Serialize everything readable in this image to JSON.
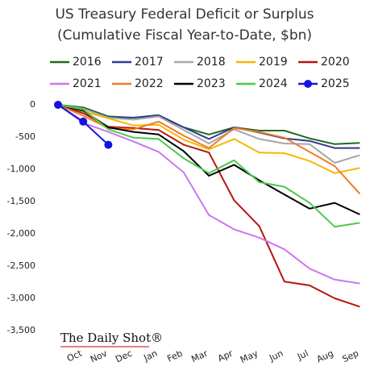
{
  "chart_data": {
    "type": "line",
    "title": "US Treasury Federal Deficit or Surplus",
    "subtitle": "(Cumulative Fiscal Year-to-Date, $bn)",
    "annotation": "The Daily Shot®",
    "categories": [
      null,
      "Oct",
      "Nov",
      "Dec",
      "Jan",
      "Feb",
      "Mar",
      "Apr",
      "May",
      "Jun",
      "Jul",
      "Aug",
      "Sep"
    ],
    "ylim": [
      -3500,
      0
    ],
    "yticks": [
      0,
      -500,
      {
        "value": -1000,
        "label": "-1,000"
      },
      {
        "value": -1500,
        "label": "-1,500"
      },
      {
        "value": -2000,
        "label": "-2,000"
      },
      {
        "value": -2500,
        "label": "-2,500"
      },
      {
        "value": -3000,
        "label": "-3,000"
      },
      {
        "value": -3500,
        "label": "-3,500"
      }
    ],
    "grid": false,
    "series": [
      {
        "name": "2016",
        "color": "#1e6b1e",
        "values": [
          0,
          -40,
          -180,
          -200,
          -170,
          -350,
          -460,
          -350,
          -400,
          -400,
          -520,
          -610,
          -590
        ]
      },
      {
        "name": "2017",
        "color": "#2e3a8c",
        "values": [
          0,
          -60,
          -190,
          -200,
          -160,
          -350,
          -530,
          -350,
          -430,
          -520,
          -560,
          -670,
          -670
        ]
      },
      {
        "name": "2018",
        "color": "#a6a6a6",
        "values": [
          0,
          -60,
          -200,
          -230,
          -180,
          -390,
          -600,
          -380,
          -530,
          -600,
          -610,
          -900,
          -780
        ]
      },
      {
        "name": "2019",
        "color": "#f5b800",
        "values": [
          0,
          -100,
          -210,
          -320,
          -310,
          -540,
          -690,
          -530,
          -740,
          -750,
          -870,
          -1060,
          -980
        ]
      },
      {
        "name": "2020",
        "color": "#b5170f",
        "values": [
          0,
          -130,
          -340,
          -360,
          -390,
          -620,
          -740,
          -1480,
          -1880,
          -2740,
          -2800,
          -3000,
          -3130
        ]
      },
      {
        "name": "2021",
        "color": "#cc77ee",
        "values": [
          0,
          -280,
          -420,
          -570,
          -730,
          -1050,
          -1710,
          -1930,
          -2060,
          -2240,
          -2540,
          -2710,
          -2770
        ]
      },
      {
        "name": "2022",
        "color": "#f07a2a",
        "values": [
          0,
          -170,
          -360,
          -380,
          -260,
          -480,
          -670,
          -360,
          -420,
          -510,
          -730,
          -950,
          -1380
        ]
      },
      {
        "name": "2023",
        "color": "#000000",
        "values": [
          0,
          -90,
          -350,
          -420,
          -460,
          -720,
          -1100,
          -930,
          -1170,
          -1390,
          -1610,
          -1520,
          -1700
        ]
      },
      {
        "name": "2024",
        "color": "#4cc94c",
        "values": [
          0,
          -70,
          -380,
          -510,
          -530,
          -830,
          -1060,
          -860,
          -1200,
          -1270,
          -1520,
          -1890,
          -1830
        ]
      },
      {
        "name": "2025",
        "color": "#1414e0",
        "values": [
          0,
          -260,
          -620,
          null,
          null,
          null,
          null,
          null,
          null,
          null,
          null,
          null,
          null
        ],
        "markers": true
      }
    ]
  }
}
